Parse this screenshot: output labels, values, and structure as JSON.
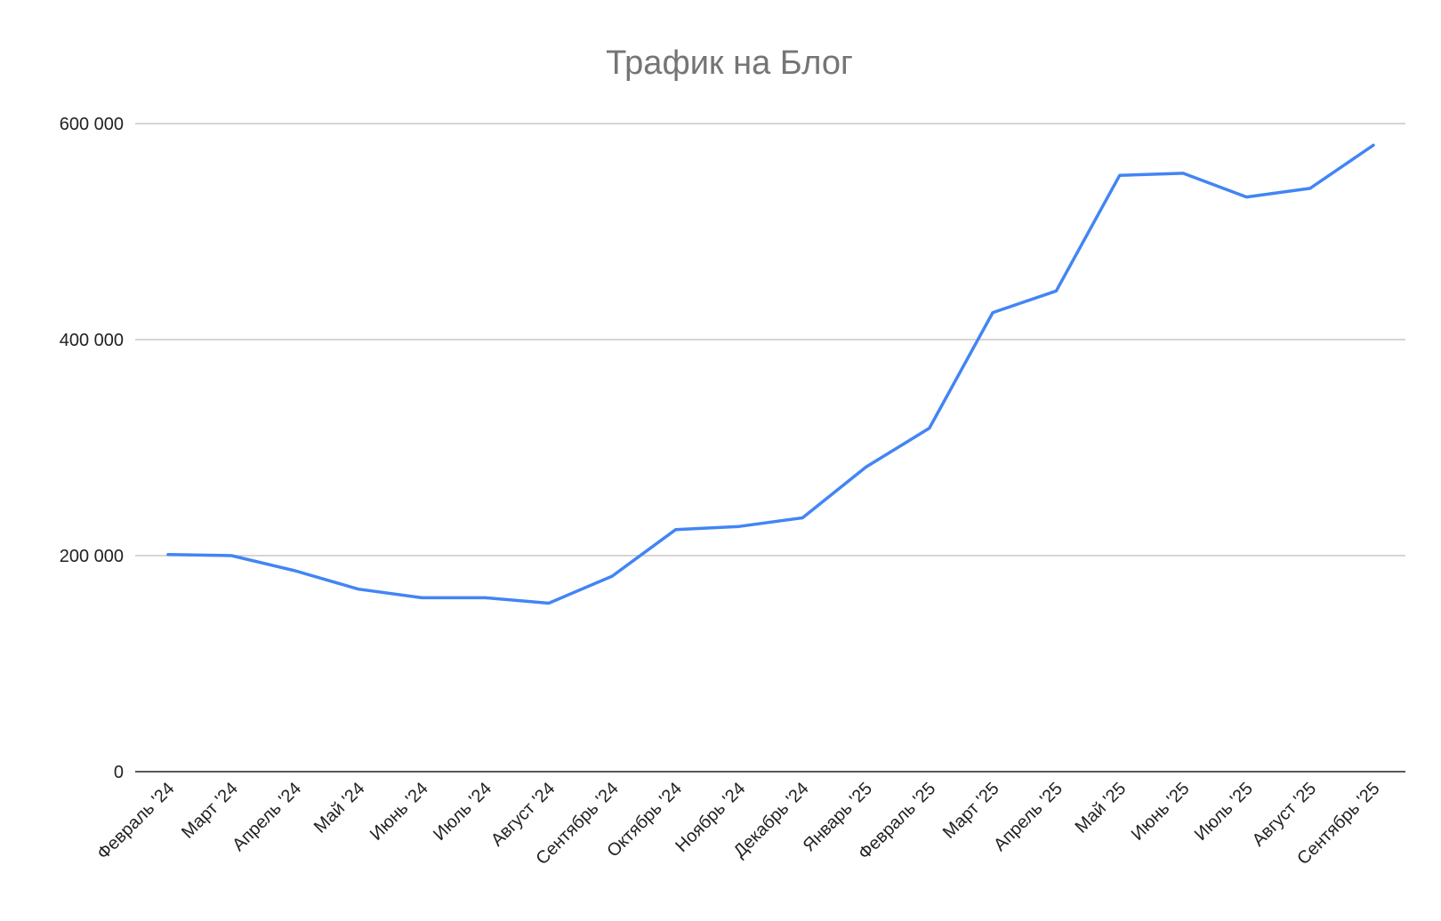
{
  "chart_data": {
    "type": "line",
    "title": "Трафик на Блог",
    "xlabel": "",
    "ylabel": "",
    "categories": [
      "Февраль '24",
      "Март '24",
      "Апрель '24",
      "Май '24",
      "Июнь '24",
      "Июль '24",
      "Август '24",
      "Сентябрь '24",
      "Октябрь '24",
      "Ноябрь '24",
      "Декабрь '24",
      "Январь '25",
      "Февраль '25",
      "Март '25",
      "Апрель '25",
      "Май '25",
      "Июнь '25",
      "Июль '25",
      "Август '25",
      "Сентябрь '25"
    ],
    "series": [
      {
        "color": "#4285f4",
        "values": [
          201000,
          200000,
          186000,
          169000,
          161000,
          161000,
          156000,
          181000,
          224000,
          227000,
          235000,
          282000,
          318000,
          425000,
          445000,
          552000,
          554000,
          532000,
          540000,
          580000
        ]
      }
    ],
    "ylim": [
      0,
      600000
    ],
    "yticks": [
      0,
      200000,
      400000,
      600000
    ],
    "ytick_labels": [
      "0",
      "200 000",
      "400 000",
      "600 000"
    ],
    "grid": true,
    "legend": "none"
  }
}
